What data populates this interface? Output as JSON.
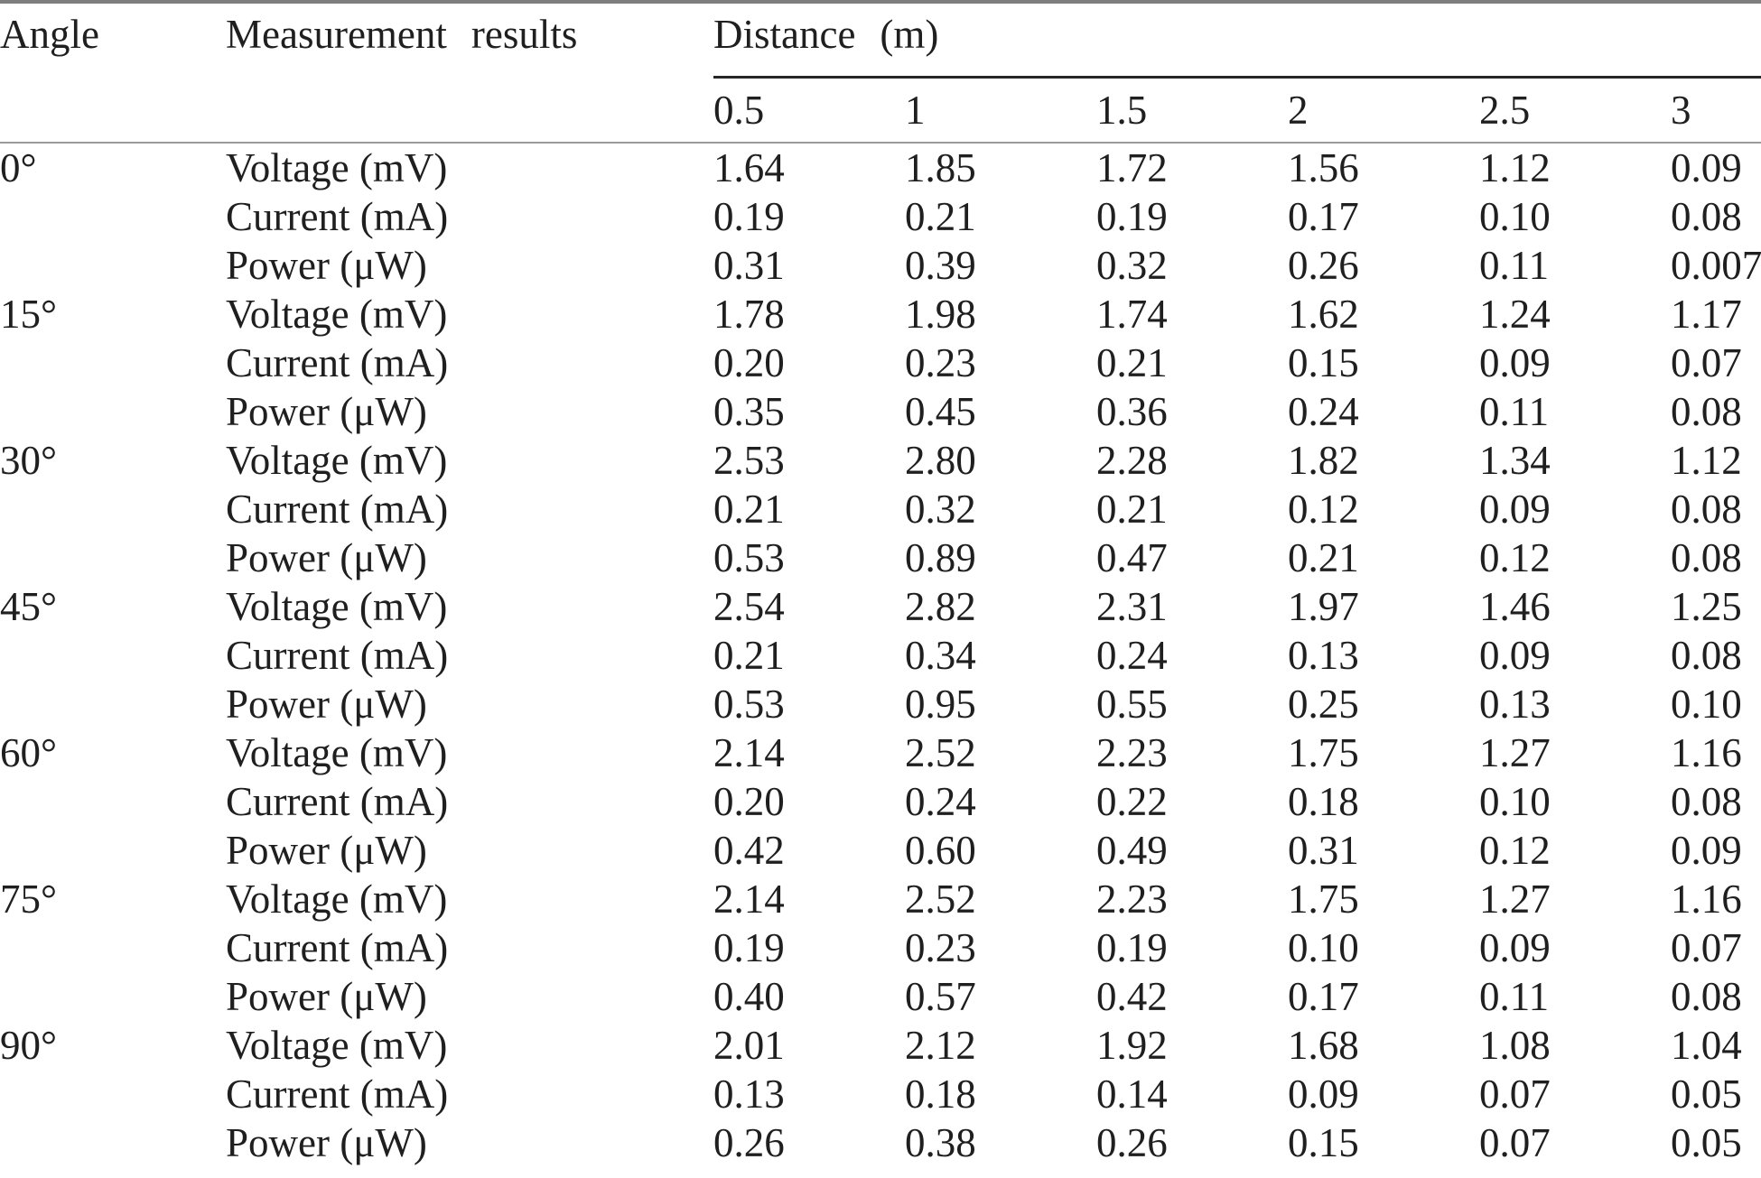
{
  "table": {
    "columns": {
      "angle_label": "Angle",
      "measurement_label": "Measurement results",
      "distance_label": "Distance (m)",
      "distance_values": [
        "0.5",
        "1",
        "1.5",
        "2",
        "2.5",
        "3"
      ]
    },
    "groups": [
      {
        "angle": "0°",
        "rows": [
          {
            "label": "Voltage (mV)",
            "values": [
              "1.64",
              "1.85",
              "1.72",
              "1.56",
              "1.12",
              "0.09"
            ]
          },
          {
            "label": "Current (mA)",
            "values": [
              "0.19",
              "0.21",
              "0.19",
              "0.17",
              "0.10",
              "0.08"
            ]
          },
          {
            "label": "Power (μW)",
            "values": [
              "0.31",
              "0.39",
              "0.32",
              "0.26",
              "0.11",
              "0.007"
            ]
          }
        ]
      },
      {
        "angle": "15°",
        "rows": [
          {
            "label": "Voltage (mV)",
            "values": [
              "1.78",
              "1.98",
              "1.74",
              "1.62",
              "1.24",
              "1.17"
            ]
          },
          {
            "label": "Current (mA)",
            "values": [
              "0.20",
              "0.23",
              "0.21",
              "0.15",
              "0.09",
              "0.07"
            ]
          },
          {
            "label": "Power (μW)",
            "values": [
              "0.35",
              "0.45",
              "0.36",
              "0.24",
              "0.11",
              "0.08"
            ]
          }
        ]
      },
      {
        "angle": "30°",
        "rows": [
          {
            "label": "Voltage (mV)",
            "values": [
              "2.53",
              "2.80",
              "2.28",
              "1.82",
              "1.34",
              "1.12"
            ]
          },
          {
            "label": "Current (mA)",
            "values": [
              "0.21",
              "0.32",
              "0.21",
              "0.12",
              "0.09",
              "0.08"
            ]
          },
          {
            "label": "Power (μW)",
            "values": [
              "0.53",
              "0.89",
              "0.47",
              "0.21",
              "0.12",
              "0.08"
            ]
          }
        ]
      },
      {
        "angle": "45°",
        "rows": [
          {
            "label": "Voltage (mV)",
            "values": [
              "2.54",
              "2.82",
              "2.31",
              "1.97",
              "1.46",
              "1.25"
            ]
          },
          {
            "label": "Current (mA)",
            "values": [
              "0.21",
              "0.34",
              "0.24",
              "0.13",
              "0.09",
              "0.08"
            ]
          },
          {
            "label": "Power (μW)",
            "values": [
              "0.53",
              "0.95",
              "0.55",
              "0.25",
              "0.13",
              "0.10"
            ]
          }
        ]
      },
      {
        "angle": "60°",
        "rows": [
          {
            "label": "Voltage (mV)",
            "values": [
              "2.14",
              "2.52",
              "2.23",
              "1.75",
              "1.27",
              "1.16"
            ]
          },
          {
            "label": "Current (mA)",
            "values": [
              "0.20",
              "0.24",
              "0.22",
              "0.18",
              "0.10",
              "0.08"
            ]
          },
          {
            "label": "Power (μW)",
            "values": [
              "0.42",
              "0.60",
              "0.49",
              "0.31",
              "0.12",
              "0.09"
            ]
          }
        ]
      },
      {
        "angle": "75°",
        "rows": [
          {
            "label": "Voltage (mV)",
            "values": [
              "2.14",
              "2.52",
              "2.23",
              "1.75",
              "1.27",
              "1.16"
            ]
          },
          {
            "label": "Current (mA)",
            "values": [
              "0.19",
              "0.23",
              "0.19",
              "0.10",
              "0.09",
              "0.07"
            ]
          },
          {
            "label": "Power (μW)",
            "values": [
              "0.40",
              "0.57",
              "0.42",
              "0.17",
              "0.11",
              "0.08"
            ]
          }
        ]
      },
      {
        "angle": "90°",
        "rows": [
          {
            "label": "Voltage (mV)",
            "values": [
              "2.01",
              "2.12",
              "1.92",
              "1.68",
              "1.08",
              "1.04"
            ]
          },
          {
            "label": "Current (mA)",
            "values": [
              "0.13",
              "0.18",
              "0.14",
              "0.09",
              "0.07",
              "0.05"
            ]
          },
          {
            "label": "Power (μW)",
            "values": [
              "0.26",
              "0.38",
              "0.26",
              "0.15",
              "0.07",
              "0.05"
            ]
          }
        ]
      }
    ]
  },
  "colors": {
    "text": "#1f1f1f",
    "rule_heavy": "#7e7e7e",
    "rule_light": "#9b9b9b",
    "rule_black": "#262626",
    "background": "#ffffff"
  }
}
